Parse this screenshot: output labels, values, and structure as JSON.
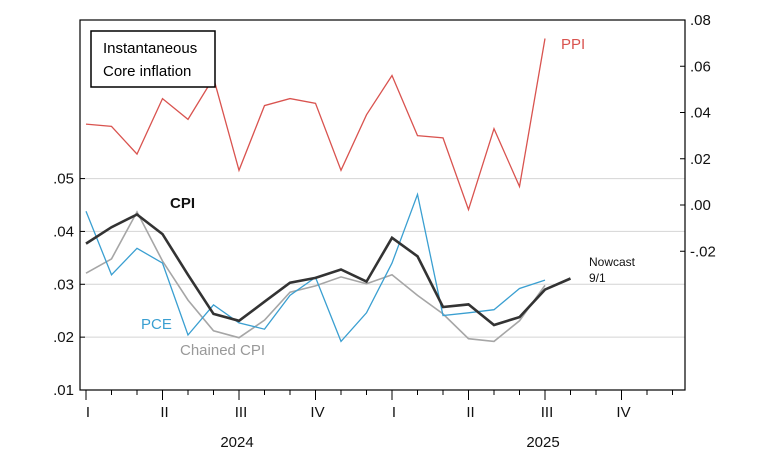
{
  "chart_data": {
    "type": "line",
    "legend_box": [
      "Instantaneous",
      "Core inflation"
    ],
    "left_axis": {
      "ylim": [
        0.01,
        0.08
      ],
      "ticks": [
        0.01,
        0.02,
        0.03,
        0.04,
        0.05
      ],
      "tick_labels": [
        ".01",
        ".02",
        ".03",
        ".04",
        ".05"
      ]
    },
    "right_axis": {
      "ylim": [
        -0.08,
        0.08
      ],
      "ticks": [
        -0.02,
        0.0,
        0.02,
        0.04,
        0.06,
        0.08
      ],
      "tick_labels": [
        "-.02",
        ".00",
        ".02",
        ".04",
        ".06",
        ".08"
      ]
    },
    "grid": true,
    "x": {
      "quarter_labels": [
        "I",
        "II",
        "III",
        "IV",
        "I",
        "II",
        "III",
        "IV"
      ],
      "year_labels": [
        "2024",
        "2025"
      ]
    },
    "series": [
      {
        "name": "PPI",
        "axis": "right",
        "color": "#d9534f",
        "width": 1.3,
        "values": [
          0.035,
          0.034,
          0.022,
          0.046,
          0.037,
          0.055,
          0.015,
          0.043,
          0.046,
          0.044,
          0.015,
          0.039,
          0.056,
          0.03,
          0.029,
          -0.002,
          0.033,
          0.008,
          0.072
        ]
      },
      {
        "name": "CPI",
        "axis": "left",
        "color": "#333333",
        "width": 2.6,
        "values": [
          0.0377,
          0.0408,
          0.0432,
          0.0395,
          0.0318,
          0.0244,
          0.0231,
          0.0267,
          0.0303,
          0.0312,
          0.0328,
          0.0305,
          0.0388,
          0.0353,
          0.0257,
          0.0262,
          0.0223,
          0.0238,
          0.029,
          0.0311
        ]
      },
      {
        "name": "PCE",
        "axis": "left",
        "color": "#3a9fd1",
        "width": 1.3,
        "values": [
          0.0438,
          0.0318,
          0.0368,
          0.034,
          0.0204,
          0.0261,
          0.0227,
          0.0215,
          0.0279,
          0.0313,
          0.0192,
          0.0246,
          0.034,
          0.047,
          0.0241,
          0.0246,
          0.0252,
          0.0292,
          0.0308
        ]
      },
      {
        "name": "Chained CPI",
        "axis": "left",
        "color": "#a6a6a6",
        "width": 1.6,
        "values": [
          0.0321,
          0.0348,
          0.0437,
          0.0344,
          0.027,
          0.0212,
          0.0199,
          0.0232,
          0.0285,
          0.0297,
          0.0314,
          0.0301,
          0.0318,
          0.0279,
          0.0244,
          0.0197,
          0.0192,
          0.0231,
          0.0298
        ]
      }
    ],
    "labels": {
      "ppi": "PPI",
      "cpi": "CPI",
      "pce": "PCE",
      "chained": "Chained CPI",
      "nowcast_1": "Nowcast",
      "nowcast_2": "9/1"
    }
  }
}
